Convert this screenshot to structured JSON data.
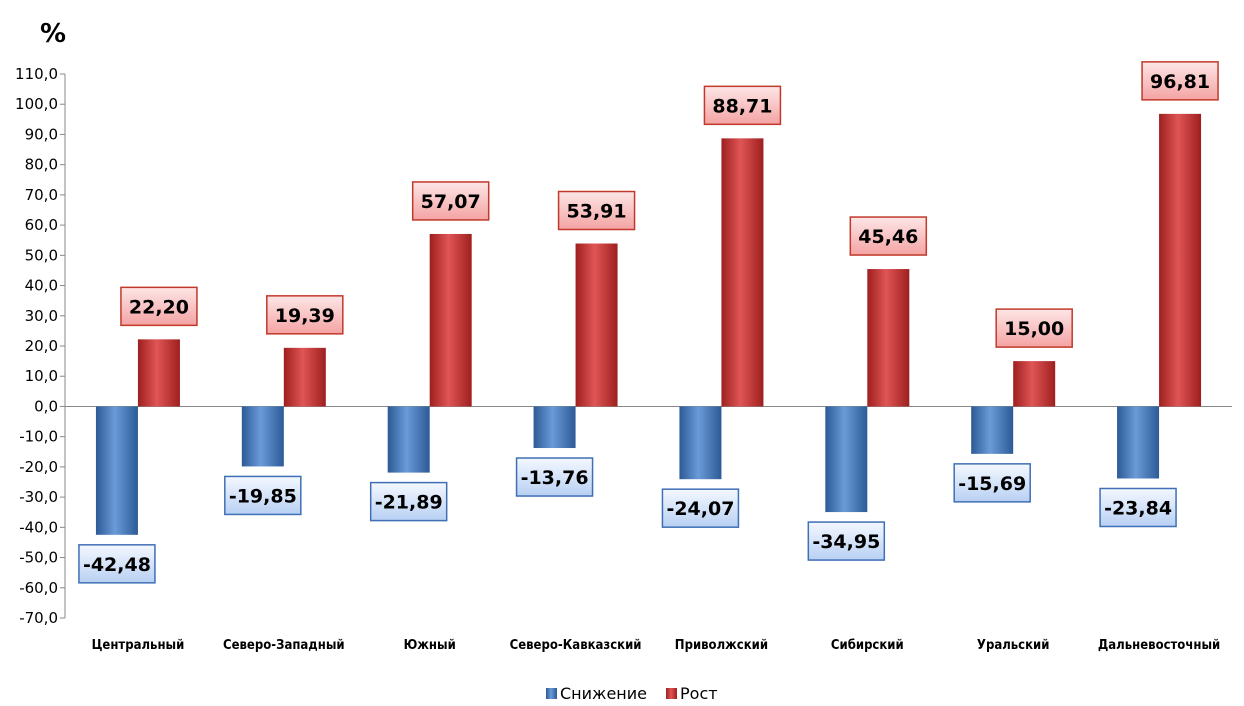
{
  "chart_data": {
    "type": "bar",
    "title": "",
    "ylabel": "%",
    "xlabel": "",
    "ylim": [
      -70,
      110
    ],
    "ytick_step": 10,
    "yticks": [
      "110,0",
      "100,0",
      "90,0",
      "80,0",
      "70,0",
      "60,0",
      "50,0",
      "40,0",
      "30,0",
      "20,0",
      "10,0",
      "0,0",
      "-10,0",
      "-20,0",
      "-30,0",
      "-40,0",
      "-50,0",
      "-60,0",
      "-70,0"
    ],
    "categories": [
      "Центральный",
      "Северо-Западный",
      "Южный",
      "Северо-Кавказский",
      "Приволжский",
      "Сибирский",
      "Уральский",
      "Дальневосточный"
    ],
    "series": [
      {
        "name": "Снижение",
        "color": "#4a7ebb",
        "values": [
          -42.48,
          -19.85,
          -21.89,
          -13.76,
          -24.07,
          -34.95,
          -15.69,
          -23.84
        ],
        "labels": [
          "-42,48",
          "-19,85",
          "-21,89",
          "-13,76",
          "-24,07",
          "-34,95",
          "-15,69",
          "-23,84"
        ]
      },
      {
        "name": "Рост",
        "color": "#c0392b",
        "values": [
          22.2,
          19.39,
          57.07,
          53.91,
          88.71,
          45.46,
          15.0,
          96.81
        ],
        "labels": [
          "22,20",
          "19,39",
          "57,07",
          "53,91",
          "88,71",
          "45,46",
          "15,00",
          "96,81"
        ]
      }
    ],
    "grid": false,
    "legend": "bottom"
  }
}
